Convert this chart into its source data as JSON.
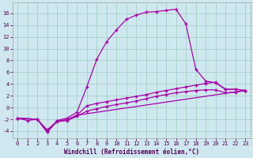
{
  "xlabel": "Windchill (Refroidissement éolien,°C)",
  "bg_color": "#cfe8f0",
  "line_color": "#aa00aa",
  "grid_color": "#99ccbb",
  "x_ticks": [
    0,
    1,
    2,
    3,
    4,
    5,
    6,
    7,
    8,
    9,
    10,
    11,
    12,
    13,
    14,
    15,
    16,
    17,
    18,
    19,
    20,
    21,
    22,
    23
  ],
  "y_ticks": [
    -4,
    -2,
    0,
    2,
    4,
    6,
    8,
    10,
    12,
    14,
    16
  ],
  "ylim": [
    -5.2,
    17.8
  ],
  "xlim": [
    -0.5,
    23.5
  ],
  "curve1_x": [
    0,
    1,
    2,
    3,
    4,
    5,
    6,
    7,
    8,
    9,
    10,
    11,
    12,
    13,
    14,
    15,
    16,
    17,
    18,
    19,
    20,
    21,
    22,
    23
  ],
  "curve1_y": [
    -1.8,
    -2.2,
    -2.0,
    -4.2,
    -2.2,
    -1.8,
    -0.8,
    3.5,
    8.2,
    11.2,
    13.2,
    15.0,
    15.7,
    16.2,
    16.3,
    16.5,
    16.7,
    14.2,
    6.5,
    4.5,
    4.2,
    3.1,
    3.1,
    2.9
  ],
  "curve2_x": [
    0,
    2,
    3,
    4,
    5,
    6,
    7,
    8,
    9,
    10,
    11,
    12,
    13,
    14,
    15,
    16,
    17,
    18,
    19,
    20,
    21,
    22,
    23
  ],
  "curve2_y": [
    -1.8,
    -2.0,
    -3.8,
    -2.3,
    -2.1,
    -1.3,
    0.3,
    0.7,
    1.0,
    1.3,
    1.6,
    1.9,
    2.2,
    2.6,
    2.9,
    3.2,
    3.5,
    3.8,
    4.1,
    4.3,
    3.1,
    3.1,
    2.9
  ],
  "curve3_x": [
    0,
    2,
    3,
    4,
    5,
    6,
    7,
    8,
    9,
    10,
    11,
    12,
    13,
    14,
    15,
    16,
    17,
    18,
    19,
    20,
    21,
    22,
    23
  ],
  "curve3_y": [
    -1.8,
    -2.0,
    -4.0,
    -2.4,
    -2.2,
    -1.5,
    -0.6,
    -0.2,
    0.2,
    0.5,
    0.8,
    1.1,
    1.5,
    1.9,
    2.2,
    2.5,
    2.7,
    2.9,
    3.0,
    3.0,
    2.5,
    2.6,
    2.9
  ],
  "curve4_x": [
    0,
    2,
    3,
    4,
    5,
    6,
    23
  ],
  "curve4_y": [
    -1.8,
    -2.0,
    -4.2,
    -2.3,
    -2.1,
    -1.3,
    2.9
  ],
  "tick_fontsize": 5.0,
  "xlabel_fontsize": 5.5
}
